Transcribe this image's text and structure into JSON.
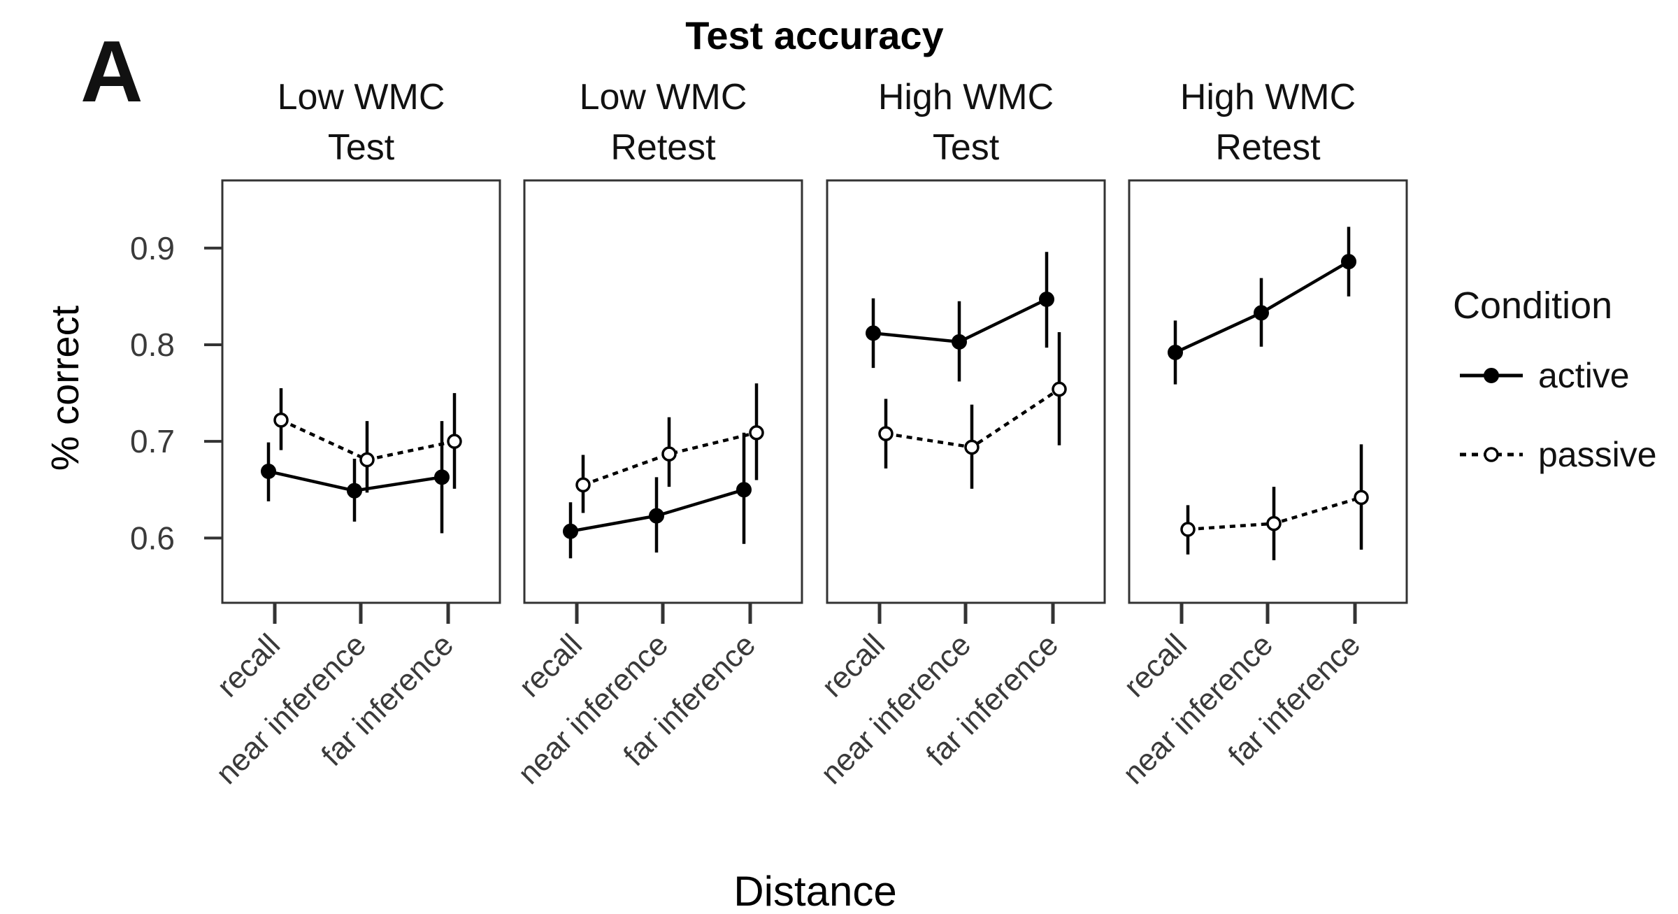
{
  "panel_letter": "A",
  "chart_data": {
    "type": "line",
    "title": "Test accuracy",
    "xlabel": "Distance",
    "ylabel": "% correct",
    "ylim": [
      0.533,
      0.97
    ],
    "yticks": [
      0.6,
      0.7,
      0.8,
      0.9
    ],
    "ytick_labels": [
      "0.6",
      "0.7",
      "0.8",
      "0.9"
    ],
    "categories": [
      "recall",
      "near inference",
      "far inference"
    ],
    "legend": {
      "title": "Condition",
      "position": "right",
      "entries": [
        {
          "name": "active",
          "style": "solid",
          "marker": "filled"
        },
        {
          "name": "passive",
          "style": "dotted",
          "marker": "open"
        }
      ]
    },
    "colors": {
      "line": "#000000",
      "frame": "#333333",
      "tick_text": "#3a3a3a"
    },
    "grid": false,
    "facets": [
      {
        "title_line1": "Low WMC",
        "title_line2": "Test",
        "series": [
          {
            "name": "active",
            "values": [
              0.669,
              0.649,
              0.663
            ],
            "err_low": [
              0.638,
              0.617,
              0.605
            ],
            "err_high": [
              0.699,
              0.682,
              0.721
            ]
          },
          {
            "name": "passive",
            "values": [
              0.722,
              0.681,
              0.7
            ],
            "err_low": [
              0.691,
              0.647,
              0.651
            ],
            "err_high": [
              0.755,
              0.721,
              0.75
            ]
          }
        ]
      },
      {
        "title_line1": "Low WMC",
        "title_line2": "Retest",
        "series": [
          {
            "name": "active",
            "values": [
              0.607,
              0.623,
              0.65
            ],
            "err_low": [
              0.579,
              0.585,
              0.594
            ],
            "err_high": [
              0.637,
              0.663,
              0.709
            ]
          },
          {
            "name": "passive",
            "values": [
              0.655,
              0.687,
              0.709
            ],
            "err_low": [
              0.626,
              0.653,
              0.66
            ],
            "err_high": [
              0.686,
              0.725,
              0.76
            ]
          }
        ]
      },
      {
        "title_line1": "High WMC",
        "title_line2": "Test",
        "series": [
          {
            "name": "active",
            "values": [
              0.812,
              0.803,
              0.847
            ],
            "err_low": [
              0.776,
              0.762,
              0.797
            ],
            "err_high": [
              0.848,
              0.845,
              0.896
            ]
          },
          {
            "name": "passive",
            "values": [
              0.708,
              0.694,
              0.754
            ],
            "err_low": [
              0.672,
              0.651,
              0.696
            ],
            "err_high": [
              0.744,
              0.738,
              0.813
            ]
          }
        ]
      },
      {
        "title_line1": "High WMC",
        "title_line2": "Retest",
        "series": [
          {
            "name": "active",
            "values": [
              0.792,
              0.833,
              0.886
            ],
            "err_low": [
              0.759,
              0.798,
              0.85
            ],
            "err_high": [
              0.825,
              0.869,
              0.922
            ]
          },
          {
            "name": "passive",
            "values": [
              0.609,
              0.615,
              0.642
            ],
            "err_low": [
              0.583,
              0.577,
              0.588
            ],
            "err_high": [
              0.634,
              0.653,
              0.697
            ]
          }
        ]
      }
    ]
  }
}
